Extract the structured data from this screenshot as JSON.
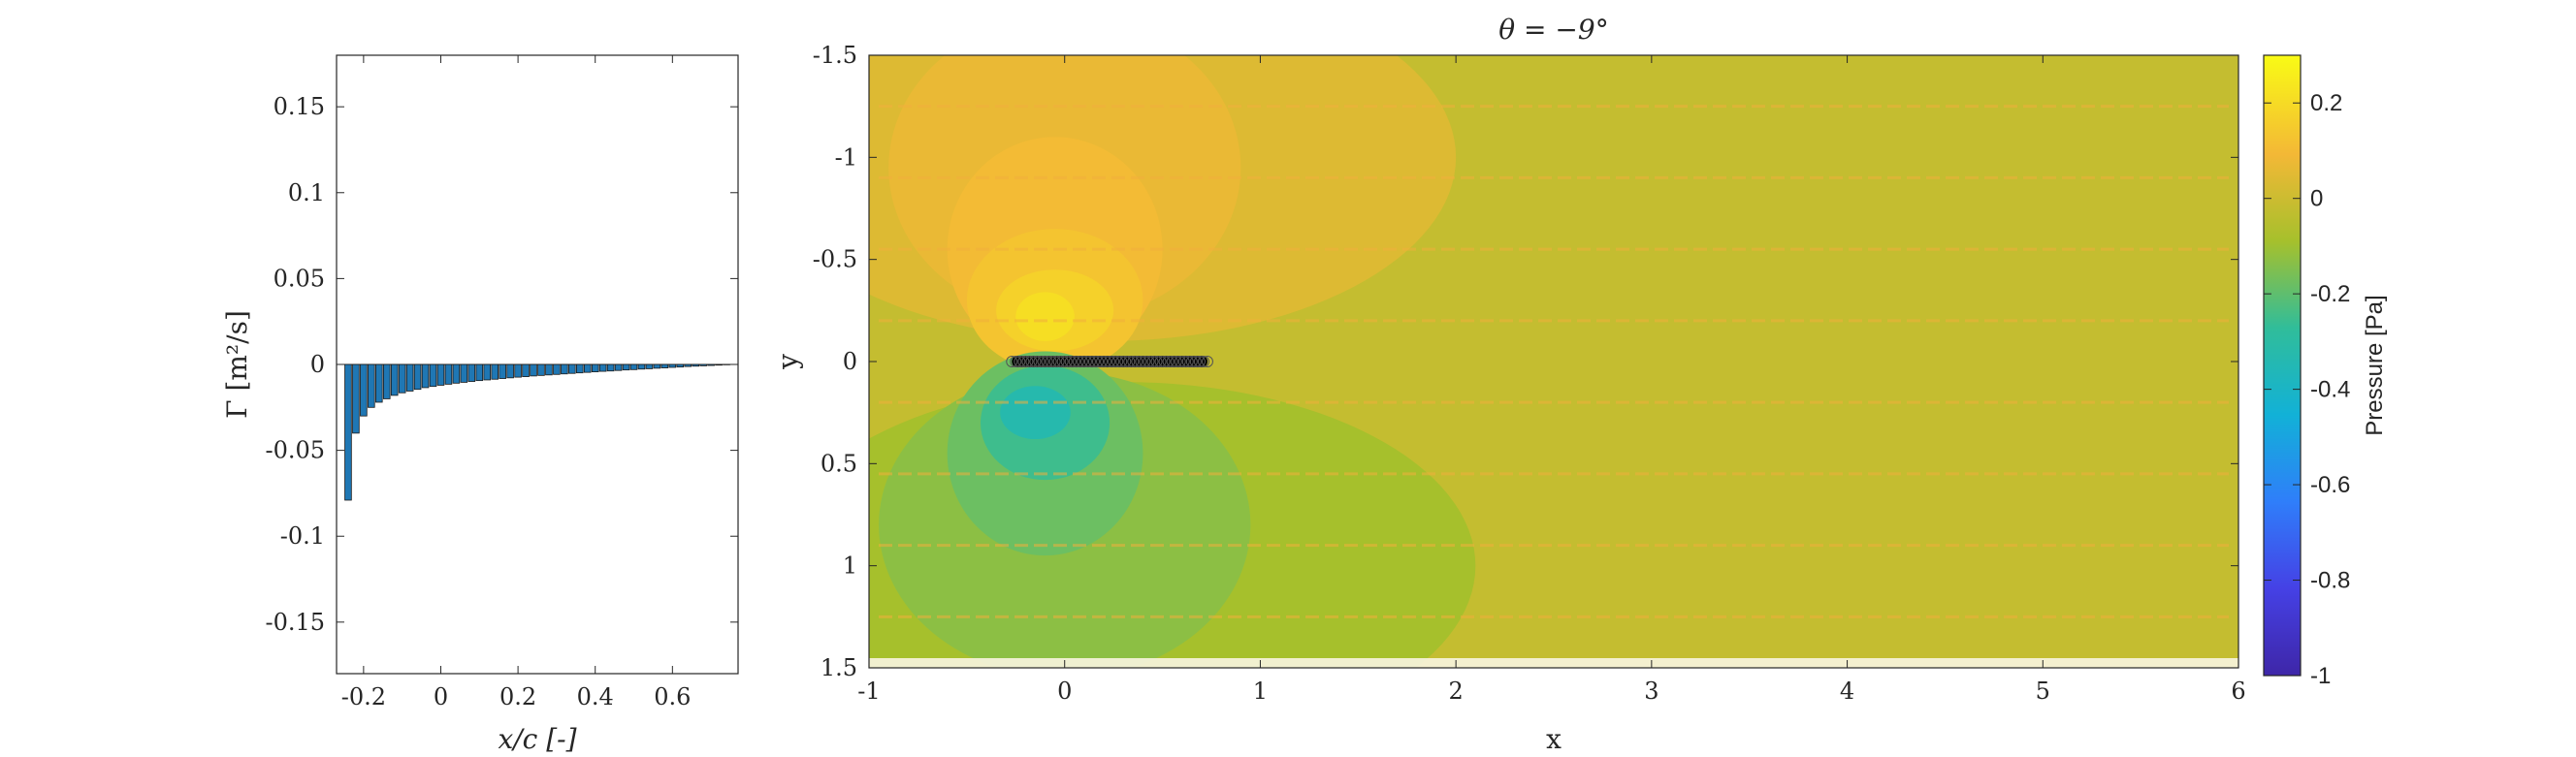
{
  "chart_data": [
    {
      "type": "bar",
      "xlabel": "x/c [-]",
      "ylabel": "Γ [m²/s]",
      "xlim": [
        -0.27,
        0.77
      ],
      "ylim": [
        -0.18,
        0.18
      ],
      "xticks": [
        "-0.2",
        "0",
        "0.2",
        "0.4",
        "0.6"
      ],
      "xtick_values": [
        -0.2,
        0,
        0.2,
        0.4,
        0.6
      ],
      "yticks": [
        "-0.15",
        "-0.1",
        "-0.05",
        "0",
        "0.05",
        "0.1",
        "0.15"
      ],
      "ytick_values": [
        -0.15,
        -0.1,
        -0.05,
        0,
        0.05,
        0.1,
        0.15
      ],
      "bar_color": "#1f77b4",
      "x": [
        -0.24,
        -0.22,
        -0.2,
        -0.18,
        -0.16,
        -0.14,
        -0.12,
        -0.1,
        -0.08,
        -0.06,
        -0.04,
        -0.02,
        0.0,
        0.02,
        0.04,
        0.06,
        0.08,
        0.1,
        0.12,
        0.14,
        0.16,
        0.18,
        0.2,
        0.22,
        0.24,
        0.26,
        0.28,
        0.3,
        0.32,
        0.34,
        0.36,
        0.38,
        0.4,
        0.42,
        0.44,
        0.46,
        0.48,
        0.5,
        0.52,
        0.54,
        0.56,
        0.58,
        0.6,
        0.62,
        0.64,
        0.66,
        0.68,
        0.7,
        0.72,
        0.74
      ],
      "values": [
        -0.079,
        -0.04,
        -0.03,
        -0.025,
        -0.022,
        -0.02,
        -0.018,
        -0.0165,
        -0.0155,
        -0.0145,
        -0.0135,
        -0.0128,
        -0.0121,
        -0.0115,
        -0.0109,
        -0.0104,
        -0.0099,
        -0.0094,
        -0.009,
        -0.0086,
        -0.0082,
        -0.0078,
        -0.0074,
        -0.0071,
        -0.0067,
        -0.0064,
        -0.0061,
        -0.0058,
        -0.0055,
        -0.0052,
        -0.0049,
        -0.0046,
        -0.0043,
        -0.004,
        -0.0038,
        -0.0035,
        -0.0032,
        -0.003,
        -0.0027,
        -0.0025,
        -0.0022,
        -0.002,
        -0.0017,
        -0.0015,
        -0.0012,
        -0.001,
        -0.0008,
        -0.0006,
        -0.0004,
        -0.0002
      ]
    },
    {
      "type": "heatmap",
      "title": "θ = −9°",
      "xlabel": "x",
      "ylabel": "y",
      "xlim": [
        -1,
        6
      ],
      "ylim": [
        -1.5,
        1.5
      ],
      "y_reversed": true,
      "xticks": [
        "-1",
        "0",
        "1",
        "2",
        "3",
        "4",
        "5",
        "6"
      ],
      "xtick_values": [
        -1,
        0,
        1,
        2,
        3,
        4,
        5,
        6
      ],
      "yticks": [
        "-1.5",
        "-1",
        "-0.5",
        "0",
        "0.5",
        "1",
        "1.5"
      ],
      "ytick_values": [
        -1.5,
        -1,
        -0.5,
        0,
        0.5,
        1,
        1.5
      ],
      "plate": {
        "x_start": -0.27,
        "x_end": 0.73,
        "y": 0
      },
      "background_value": -0.02,
      "contours": [
        {
          "cx": 0.2,
          "cy": -1.0,
          "rx": 1.8,
          "ry": 0.9,
          "value": 0.04
        },
        {
          "cx": 0.0,
          "cy": -0.95,
          "rx": 0.9,
          "ry": 0.75,
          "value": 0.07
        },
        {
          "cx": -0.05,
          "cy": -0.55,
          "rx": 0.55,
          "ry": 0.55,
          "value": 0.1
        },
        {
          "cx": -0.05,
          "cy": -0.3,
          "rx": 0.45,
          "ry": 0.35,
          "value": 0.13
        },
        {
          "cx": -0.05,
          "cy": -0.25,
          "rx": 0.3,
          "ry": 0.2,
          "value": 0.17
        },
        {
          "cx": -0.1,
          "cy": -0.22,
          "rx": 0.15,
          "ry": 0.12,
          "value": 0.21
        },
        {
          "cx": 0.3,
          "cy": 1.0,
          "rx": 1.8,
          "ry": 0.9,
          "value": -0.09
        },
        {
          "cx": 0.0,
          "cy": 0.8,
          "rx": 0.95,
          "ry": 0.75,
          "value": -0.13
        },
        {
          "cx": -0.1,
          "cy": 0.45,
          "rx": 0.5,
          "ry": 0.5,
          "value": -0.18
        },
        {
          "cx": -0.1,
          "cy": 0.3,
          "rx": 0.33,
          "ry": 0.28,
          "value": -0.25
        },
        {
          "cx": -0.15,
          "cy": 0.25,
          "rx": 0.18,
          "ry": 0.13,
          "value": -0.33
        }
      ]
    },
    {
      "type": "colorbar",
      "label": "Pressure [Pa]",
      "range": [
        -1,
        0.3
      ],
      "ticks": [
        "-1",
        "-0.8",
        "-0.6",
        "-0.4",
        "-0.2",
        "0",
        "0.2"
      ],
      "tick_values": [
        -1,
        -0.8,
        -0.6,
        -0.4,
        -0.2,
        0,
        0.2
      ],
      "colormap": "parula"
    }
  ]
}
